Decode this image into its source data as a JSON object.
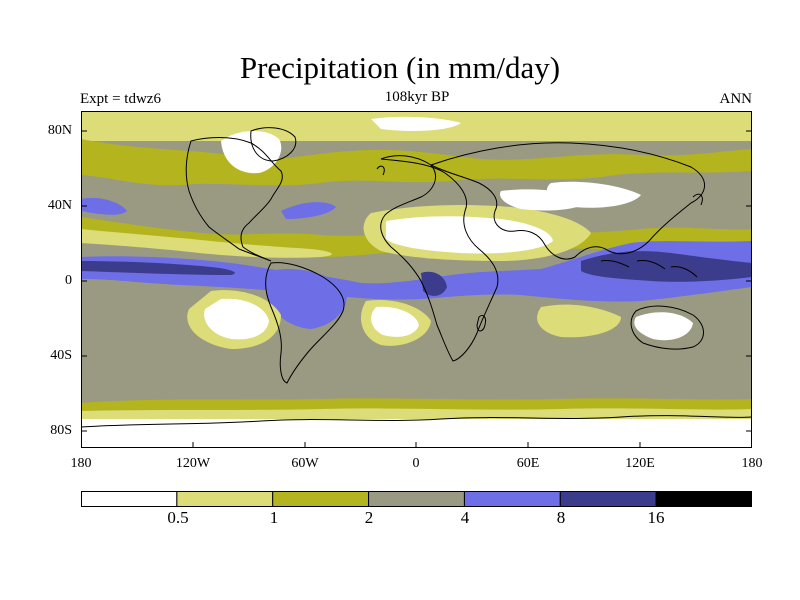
{
  "title": "Precipitation (in mm/day)",
  "experiment": "Expt = tdwz6",
  "subtitle": "108kyr BP",
  "season": "ANN",
  "lat_labels": [
    "80N",
    "40N",
    "0",
    "40S",
    "80S"
  ],
  "lon_labels": [
    "180",
    "120W",
    "60W",
    "0",
    "60E",
    "120E",
    "180"
  ],
  "colorbar": {
    "labels": [
      "0.5",
      "1",
      "2",
      "4",
      "8",
      "16"
    ],
    "colors": [
      "#ffffff",
      "#dcdc78",
      "#b4b41e",
      "#9a9a82",
      "#6e6ee6",
      "#3c3c8c",
      "#000000"
    ]
  },
  "colors": {
    "white": "#ffffff",
    "light_yellow": "#dcdc78",
    "olive": "#b4b41e",
    "gray": "#9a9a82",
    "blue": "#6e6ee6",
    "dark_blue": "#3c3c8c",
    "coast": "#000000"
  }
}
